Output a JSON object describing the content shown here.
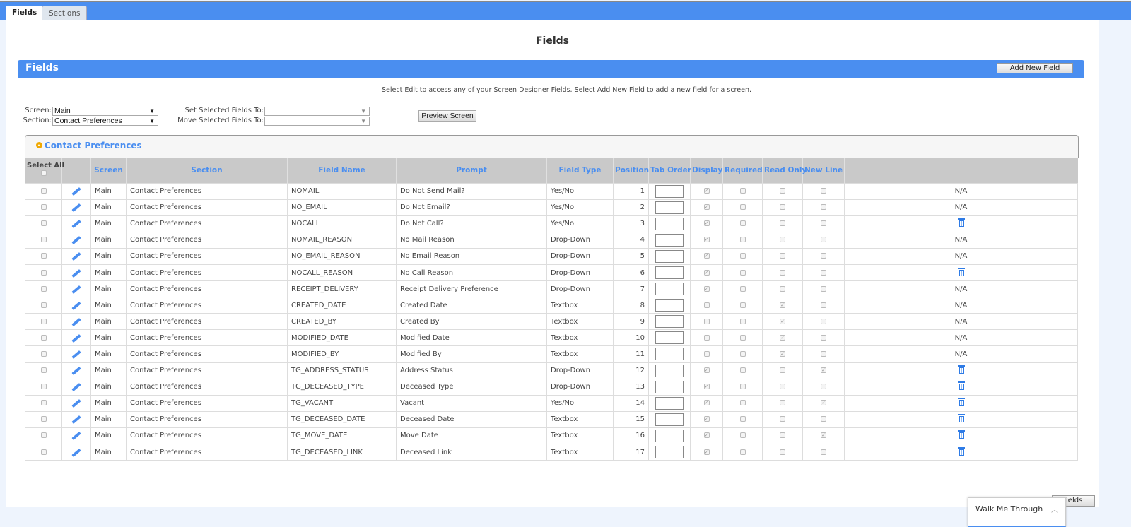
{
  "tabs": [
    {
      "label": "Fields",
      "active": true
    },
    {
      "label": "Sections",
      "active": false
    }
  ],
  "page_title": "Fields",
  "panel_title": "Fields",
  "add_new_field": "Add New Field",
  "instructions": "Select Edit to access any of your Screen Designer Fields. Select Add New Field to add a new field for a screen.",
  "filters": {
    "screen_label": "Screen:",
    "screen_value": "Main",
    "section_label": "Section:",
    "section_value": "Contact Preferences",
    "set_label": "Set Selected Fields To:",
    "set_value": "",
    "move_label": "Move Selected Fields To:",
    "move_value": ""
  },
  "preview_button": "Preview Screen",
  "section_panel_title": "Contact Preferences",
  "columns": [
    "Select All",
    "",
    "Screen",
    "Section",
    "Field Name",
    "Prompt",
    "Field Type",
    "Position",
    "Tab Order",
    "Display",
    "Required",
    "Read Only",
    "New Line",
    ""
  ],
  "rows": [
    {
      "screen": "Main",
      "section": "Contact Preferences",
      "field": "NOMAIL",
      "prompt": "Do Not Send Mail?",
      "type": "Yes/No",
      "position": "1",
      "display": true,
      "required": false,
      "readonly": false,
      "newline": false,
      "action": "N/A"
    },
    {
      "screen": "Main",
      "section": "Contact Preferences",
      "field": "NO_EMAIL",
      "prompt": "Do Not Email?",
      "type": "Yes/No",
      "position": "2",
      "display": true,
      "required": false,
      "readonly": false,
      "newline": false,
      "action": "N/A"
    },
    {
      "screen": "Main",
      "section": "Contact Preferences",
      "field": "NOCALL",
      "prompt": "Do Not Call?",
      "type": "Yes/No",
      "position": "3",
      "display": true,
      "required": false,
      "readonly": false,
      "newline": false,
      "action": "delete"
    },
    {
      "screen": "Main",
      "section": "Contact Preferences",
      "field": "NOMAIL_REASON",
      "prompt": "No Mail Reason",
      "type": "Drop-Down",
      "position": "4",
      "display": true,
      "required": false,
      "readonly": false,
      "newline": false,
      "action": "N/A"
    },
    {
      "screen": "Main",
      "section": "Contact Preferences",
      "field": "NO_EMAIL_REASON",
      "prompt": "No Email Reason",
      "type": "Drop-Down",
      "position": "5",
      "display": true,
      "required": false,
      "readonly": false,
      "newline": false,
      "action": "N/A"
    },
    {
      "screen": "Main",
      "section": "Contact Preferences",
      "field": "NOCALL_REASON",
      "prompt": "No Call Reason",
      "type": "Drop-Down",
      "position": "6",
      "display": true,
      "required": false,
      "readonly": false,
      "newline": false,
      "action": "delete"
    },
    {
      "screen": "Main",
      "section": "Contact Preferences",
      "field": "RECEIPT_DELIVERY",
      "prompt": "Receipt Delivery Preference",
      "type": "Drop-Down",
      "position": "7",
      "display": true,
      "required": false,
      "readonly": false,
      "newline": false,
      "action": "N/A"
    },
    {
      "screen": "Main",
      "section": "Contact Preferences",
      "field": "CREATED_DATE",
      "prompt": "Created Date",
      "type": "Textbox",
      "position": "8",
      "display": false,
      "required": false,
      "readonly": true,
      "newline": false,
      "action": "N/A"
    },
    {
      "screen": "Main",
      "section": "Contact Preferences",
      "field": "CREATED_BY",
      "prompt": "Created By",
      "type": "Textbox",
      "position": "9",
      "display": false,
      "required": false,
      "readonly": true,
      "newline": false,
      "action": "N/A"
    },
    {
      "screen": "Main",
      "section": "Contact Preferences",
      "field": "MODIFIED_DATE",
      "prompt": "Modified Date",
      "type": "Textbox",
      "position": "10",
      "display": false,
      "required": false,
      "readonly": true,
      "newline": false,
      "action": "N/A"
    },
    {
      "screen": "Main",
      "section": "Contact Preferences",
      "field": "MODIFIED_BY",
      "prompt": "Modified By",
      "type": "Textbox",
      "position": "11",
      "display": false,
      "required": false,
      "readonly": true,
      "newline": false,
      "action": "N/A"
    },
    {
      "screen": "Main",
      "section": "Contact Preferences",
      "field": "TG_ADDRESS_STATUS",
      "prompt": "Address Status",
      "type": "Drop-Down",
      "position": "12",
      "display": true,
      "required": false,
      "readonly": false,
      "newline": true,
      "action": "delete"
    },
    {
      "screen": "Main",
      "section": "Contact Preferences",
      "field": "TG_DECEASED_TYPE",
      "prompt": "Deceased Type",
      "type": "Drop-Down",
      "position": "13",
      "display": true,
      "required": false,
      "readonly": false,
      "newline": false,
      "action": "delete"
    },
    {
      "screen": "Main",
      "section": "Contact Preferences",
      "field": "TG_VACANT",
      "prompt": "Vacant",
      "type": "Yes/No",
      "position": "14",
      "display": true,
      "required": false,
      "readonly": false,
      "newline": true,
      "action": "delete"
    },
    {
      "screen": "Main",
      "section": "Contact Preferences",
      "field": "TG_DECEASED_DATE",
      "prompt": "Deceased Date",
      "type": "Textbox",
      "position": "15",
      "display": true,
      "required": false,
      "readonly": false,
      "newline": false,
      "action": "delete"
    },
    {
      "screen": "Main",
      "section": "Contact Preferences",
      "field": "TG_MOVE_DATE",
      "prompt": "Move Date",
      "type": "Textbox",
      "position": "16",
      "display": true,
      "required": false,
      "readonly": false,
      "newline": true,
      "action": "delete"
    },
    {
      "screen": "Main",
      "section": "Contact Preferences",
      "field": "TG_DECEASED_LINK",
      "prompt": "Deceased Link",
      "type": "Textbox",
      "position": "17",
      "display": true,
      "required": false,
      "readonly": false,
      "newline": false,
      "action": "delete"
    }
  ],
  "bottom_button": "Fields",
  "walk_me_through": "Walk Me Through",
  "colors": {
    "accent": "#4a8ef0",
    "header_bg": "#c9c9c9",
    "collapse_icon": "#f0a800"
  },
  "icons": {
    "edit": "pencil-icon",
    "delete": "trash-icon",
    "collapse": "chevron-up-circle-icon",
    "widget": "chevron-up-icon"
  }
}
